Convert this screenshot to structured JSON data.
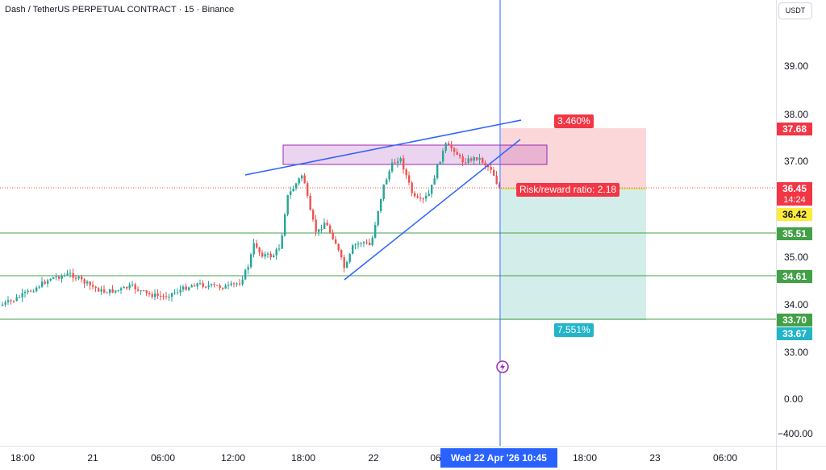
{
  "header": {
    "symbol_title": "Dash / TetherUS PERPETUAL CONTRACT · 15 · Binance"
  },
  "price_scale": {
    "currency": "USDT",
    "ticks": [
      "39.00",
      "38.00",
      "37.00",
      "35.00",
      "34.00",
      "33.00",
      "0.00",
      "−400.00"
    ],
    "badges": {
      "target_price": "37.68",
      "last_price": "36.45",
      "countdown": "14:24",
      "entry_price": "36.42",
      "level_high": "35.51",
      "level_mid": "34.61",
      "level_low": "33.70",
      "stop_price": "33.67"
    }
  },
  "time_scale": {
    "labels": [
      "18:00",
      "21",
      "06:00",
      "12:00",
      "18:00",
      "22",
      "06",
      "18:00",
      "23",
      "06:00"
    ],
    "crosshair_label": "Wed 22 Apr '26   10:45"
  },
  "position_tool": {
    "target_pct": "3.460%",
    "stop_pct": "7.551%",
    "risk_reward": "Risk/reward ratio: 2.18"
  },
  "colors": {
    "up": "#26a69a",
    "down": "#ef5350",
    "crosshair": "#2962ff",
    "trendline": "#2962ff",
    "level_line": "#43a047",
    "zone": "#9c27b0"
  }
}
